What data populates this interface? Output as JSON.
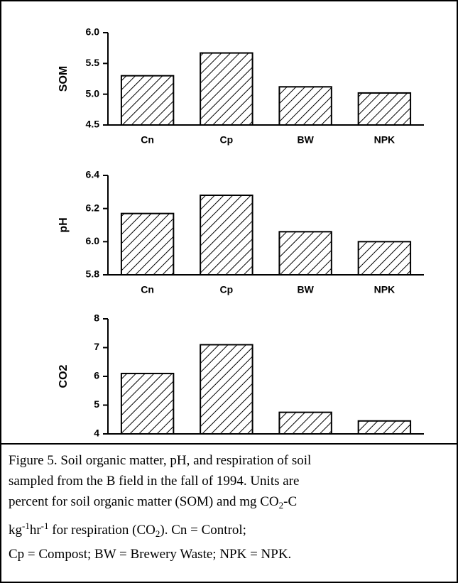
{
  "chart_data": [
    {
      "type": "bar",
      "ylabel": "SOM",
      "categories": [
        "Cn",
        "Cp",
        "BW",
        "NPK"
      ],
      "values": [
        5.3,
        5.67,
        5.12,
        5.02
      ],
      "color": "#000000",
      "ylim": [
        4.5,
        6.0
      ],
      "yticks": [
        4.5,
        {
          "value": 5,
          "label": "5.0"
        },
        5.5,
        {
          "value": 6,
          "label": "6.0"
        }
      ]
    },
    {
      "type": "bar",
      "ylabel": "pH",
      "categories": [
        "Cn",
        "Cp",
        "BW",
        "NPK"
      ],
      "values": [
        6.17,
        6.28,
        6.06,
        6.0
      ],
      "color": "#000000",
      "ylim": [
        5.8,
        6.4
      ],
      "yticks": [
        5.8,
        {
          "value": 6,
          "label": "6.0"
        },
        6.2,
        6.4
      ]
    },
    {
      "type": "bar",
      "ylabel": "CO2",
      "categories": [
        "Cn",
        "Cp",
        "BW",
        "NPK"
      ],
      "values": [
        6.1,
        7.1,
        4.75,
        4.45
      ],
      "color": "#000000",
      "ylim": [
        4,
        8
      ],
      "yticks": [
        4,
        5,
        6,
        7,
        8
      ]
    }
  ],
  "caption": [
    [
      "Figure 5. Soil organic matter, pH, and respiration of soil"
    ],
    [
      "sampled from the B field in the fall of 1994. Units are"
    ],
    [
      "percent for soil organic matter (SOM) and mg CO",
      "2",
      "-C"
    ],
    [
      "kg",
      "-1",
      "hr",
      "-1",
      " for respiration (CO",
      "2",
      "). Cn = Control;"
    ],
    [
      "Cp = Compost; BW = Brewery Waste; NPK = NPK."
    ]
  ]
}
